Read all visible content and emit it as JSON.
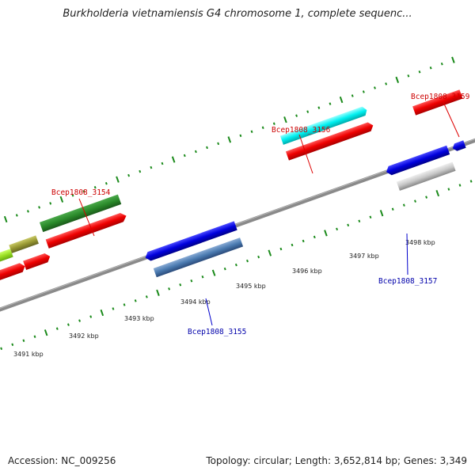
{
  "title": "Burkholderia vietnamiensis G4 chromosome 1, complete sequenc...",
  "footer": {
    "accession": "Accession: NC_009256",
    "summary": "Topology: circular; Length: 3,652,814 bp; Genes: 3,349"
  },
  "kbp_labels": [
    "3491 kbp",
    "3492 kbp",
    "3493 kbp",
    "3494 kbp",
    "3495 kbp",
    "3496 kbp",
    "3497 kbp",
    "3498 kbp"
  ],
  "gene_labels": {
    "top": [
      "Bcep1808_3154",
      "Bcep1808_3156",
      "Bcep1808_3159"
    ],
    "bottom": [
      "Bcep1808_3155",
      "Bcep1808_3157"
    ]
  },
  "colors": {
    "label_forward": "#cc0000",
    "label_reverse": "#0000aa",
    "tick": "#1a8a1a",
    "backbone": "#888888"
  }
}
